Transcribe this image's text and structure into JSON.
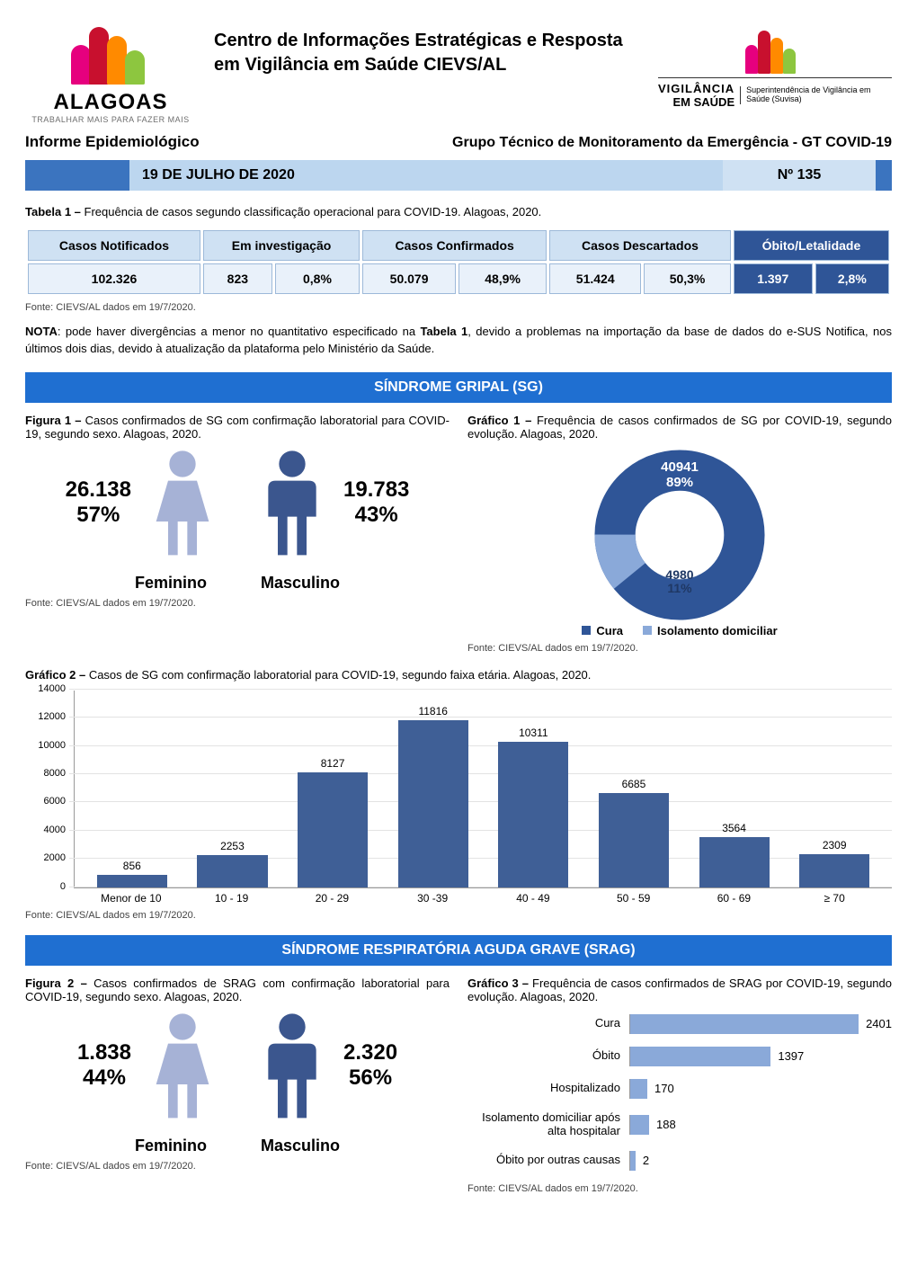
{
  "header": {
    "left_logo": {
      "brand": "ALAGOAS",
      "tagline": "TRABALHAR MAIS PARA FAZER MAIS"
    },
    "center_title": "Centro de Informações Estratégicas e Resposta em Vigilância em Saúde CIEVS/AL",
    "right_logo": {
      "line1": "VIGILÂNCIA",
      "line2": "EM SAÚDE",
      "sub": "Superintendência de Vigilância em Saúde (Suvisa)"
    }
  },
  "subhead": {
    "left": "Informe Epidemiológico",
    "right": "Grupo Técnico de Monitoramento da Emergência - GT COVID-19"
  },
  "datebar": {
    "date": "19 DE JULHO DE 2020",
    "number": "Nº 135"
  },
  "tabela1": {
    "caption_strong": "Tabela 1 –",
    "caption": " Frequência de casos segundo classificação operacional para COVID-19. Alagoas, 2020.",
    "headers": [
      "Casos Notificados",
      "Em investigação",
      "Casos Confirmados",
      "Casos Descartados",
      "Óbito/Letalidade"
    ],
    "row": [
      "102.326",
      "823",
      "0,8%",
      "50.079",
      "48,9%",
      "51.424",
      "50,3%",
      "1.397",
      "2,8%"
    ],
    "source": "Fonte: CIEVS/AL dados em 19/7/2020."
  },
  "nota": {
    "label": "NOTA",
    "text": ": pode haver divergências a menor no quantitativo especificado na ",
    "ref": "Tabela 1",
    "text2": ", devido a problemas na importação da base de dados do e-SUS Notifica, nos últimos dois dias, devido à atualização da plataforma pelo Ministério da Saúde."
  },
  "sg_title": "SÍNDROME GRIPAL (SG)",
  "figura1": {
    "caption_b": "Figura 1 –",
    "caption": " Casos confirmados de SG com confirmação laboratorial para COVID-19, segundo sexo. Alagoas, 2020.",
    "fem": {
      "n": "26.138",
      "pct": "57%",
      "label": "Feminino",
      "color": "#a6b2d6"
    },
    "masc": {
      "n": "19.783",
      "pct": "43%",
      "label": "Masculino",
      "color": "#3b568e"
    },
    "source": "Fonte: CIEVS/AL dados em 19/7/2020."
  },
  "grafico1": {
    "caption_b": "Gráfico 1 –",
    "caption": " Frequência de casos confirmados de SG por COVID-19, segundo evolução. Alagoas, 2020.",
    "cura": {
      "value": "40941",
      "pct": "89%",
      "label": "Cura",
      "color": "#2f5597"
    },
    "iso": {
      "value": "4980",
      "pct": "11%",
      "label": "Isolamento domiciliar",
      "color": "#8aa9d9"
    },
    "source": "Fonte: CIEVS/AL dados em 19/7/2020."
  },
  "grafico2": {
    "caption_b": "Gráfico 2 –",
    "caption": " Casos de SG com confirmação laboratorial para COVID-19, segundo faixa etária. Alagoas, 2020.",
    "ymax": 14000,
    "ystep": 2000,
    "categories": [
      "Menor de 10",
      "10 - 19",
      "20 - 29",
      "30 -39",
      "40 - 49",
      "50 - 59",
      "60 - 69",
      "≥ 70"
    ],
    "values": [
      856,
      2253,
      8127,
      11816,
      10311,
      6685,
      3564,
      2309
    ],
    "bar_color": "#3f5f96",
    "source": "Fonte: CIEVS/AL dados em 19/7/2020."
  },
  "srag_title": "SÍNDROME RESPIRATÓRIA AGUDA GRAVE (SRAG)",
  "figura2": {
    "caption_b": "Figura 2 –",
    "caption": " Casos confirmados de SRAG com confirmação laboratorial para COVID-19, segundo sexo. Alagoas, 2020.",
    "fem": {
      "n": "1.838",
      "pct": "44%",
      "label": "Feminino",
      "color": "#a6b2d6"
    },
    "masc": {
      "n": "2.320",
      "pct": "56%",
      "label": "Masculino",
      "color": "#3b568e"
    },
    "source": "Fonte: CIEVS/AL dados em 19/7/2020."
  },
  "grafico3": {
    "caption_b": "Gráfico 3 –",
    "caption": " Frequência de casos confirmados de SRAG por COVID-19, segundo evolução. Alagoas, 2020.",
    "max": 2600,
    "items": [
      {
        "label": "Cura",
        "value": 2401
      },
      {
        "label": "Óbito",
        "value": 1397
      },
      {
        "label": "Hospitalizado",
        "value": 170
      },
      {
        "label": "Isolamento domiciliar após alta hospitalar",
        "value": 188
      },
      {
        "label": "Óbito por outras causas",
        "value": 2
      }
    ],
    "bar_color": "#8aa9d9",
    "source": "Fonte: CIEVS/AL dados em 19/7/2020."
  }
}
